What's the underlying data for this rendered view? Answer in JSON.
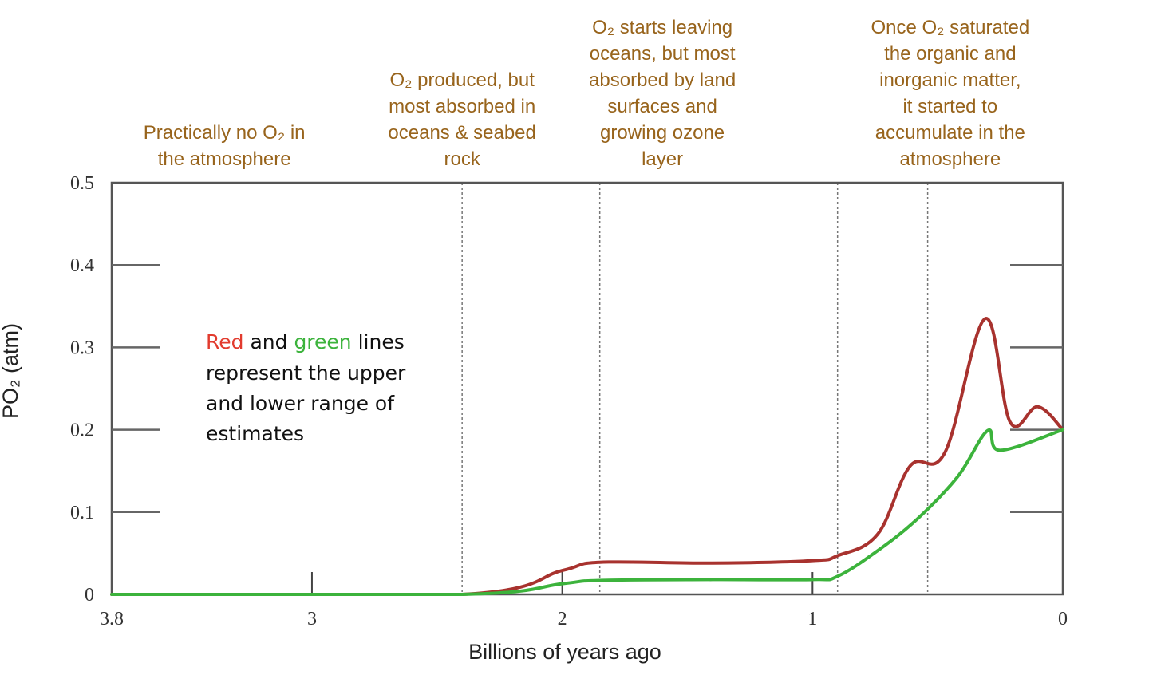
{
  "chart_data": {
    "type": "line",
    "xlabel": "Billions of years ago",
    "ylabel": "PO₂ (atm)",
    "xlim": [
      3.8,
      0
    ],
    "ylim": [
      0,
      0.5
    ],
    "x_reversed": true,
    "xticks": [
      "3.8",
      "3",
      "2",
      "1",
      "0"
    ],
    "xtick_values": [
      3.8,
      3,
      2,
      1,
      0
    ],
    "yticks": [
      "0",
      "0.1",
      "0.2",
      "0.3",
      "0.4",
      "0.5"
    ],
    "ytick_values": [
      0,
      0.1,
      0.2,
      0.3,
      0.4,
      0.5
    ],
    "grid": false,
    "stage_boundaries": [
      2.4,
      1.85,
      0.9,
      0.54
    ],
    "series": [
      {
        "color": "#a8322e",
        "x": [
          3.8,
          2.4,
          2.0,
          1.85,
          1.4,
          1.0,
          0.9,
          0.74,
          0.61,
          0.47,
          0.31,
          0.21,
          0.1,
          0
        ],
        "y": [
          0,
          0,
          0.029,
          0.039,
          0.038,
          0.041,
          0.047,
          0.073,
          0.156,
          0.173,
          0.335,
          0.209,
          0.228,
          0.2
        ]
      },
      {
        "color": "#3cb33c",
        "x": [
          3.8,
          2.4,
          2.0,
          1.85,
          1.4,
          1.0,
          0.9,
          0.74,
          0.58,
          0.42,
          0.3,
          0.25,
          0
        ],
        "y": [
          0,
          0,
          0.013,
          0.017,
          0.018,
          0.018,
          0.022,
          0.053,
          0.092,
          0.143,
          0.199,
          0.175,
          0.2
        ]
      }
    ],
    "annotations": [
      {
        "x_center": 3.35,
        "lines": [
          "Practically no O₂ in",
          "the atmosphere"
        ]
      },
      {
        "x_center": 2.4,
        "lines": [
          "O₂ produced, but",
          "most absorbed in",
          "oceans & seabed",
          "rock"
        ]
      },
      {
        "x_center": 1.6,
        "lines": [
          "O₂ starts leaving",
          "oceans, but most",
          "absorbed by land",
          "surfaces and",
          "growing ozone",
          "layer"
        ]
      },
      {
        "x_center": 0.45,
        "lines": [
          "Once O₂ saturated",
          "the organic and",
          "inorganic matter,",
          "it started to",
          "accumulate in the",
          "atmosphere"
        ]
      }
    ],
    "note": {
      "red_word": "Red",
      "and_word": " and ",
      "green_word": "green",
      "rest_first_line": " lines",
      "lines": [
        "represent the upper",
        "and lower range of",
        "estimates"
      ],
      "red_color": "#e23b2e",
      "green_color": "#3cb33c"
    },
    "annotation_color": "#98641c"
  }
}
